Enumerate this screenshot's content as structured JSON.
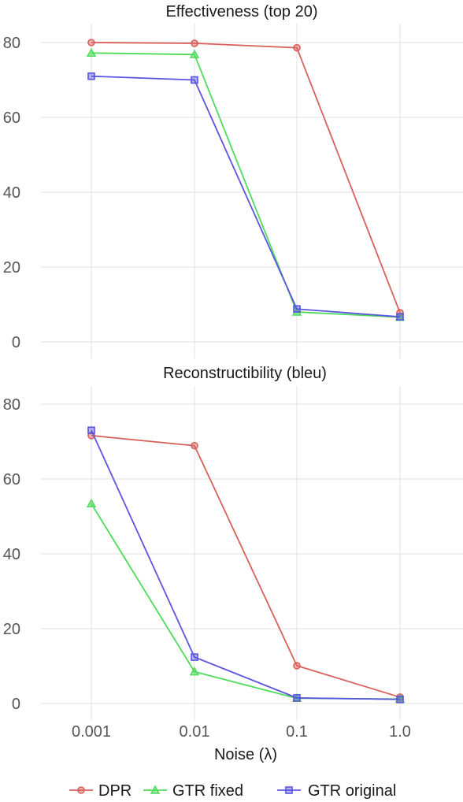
{
  "chart_data": [
    {
      "type": "line",
      "title": "Effectiveness (top 20)",
      "categories": [
        "0.001",
        "0.01",
        "0.1",
        "1.0"
      ],
      "ylim": [
        0,
        85
      ],
      "yticks": [
        0,
        20,
        40,
        60,
        80
      ],
      "grid": true,
      "series": [
        {
          "name": "DPR",
          "values": [
            80.0,
            79.8,
            78.6,
            7.8
          ]
        },
        {
          "name": "GTR fixed",
          "values": [
            77.2,
            76.8,
            8.0,
            6.6
          ]
        },
        {
          "name": "GTR original",
          "values": [
            71.0,
            70.0,
            8.8,
            6.7
          ]
        }
      ]
    },
    {
      "type": "line",
      "title": "Reconstructibility (bleu)",
      "categories": [
        "0.001",
        "0.01",
        "0.1",
        "1.0"
      ],
      "ylim": [
        0,
        85
      ],
      "yticks": [
        0,
        20,
        40,
        60,
        80
      ],
      "grid": true,
      "series": [
        {
          "name": "DPR",
          "values": [
            71.6,
            68.9,
            10.1,
            1.7
          ]
        },
        {
          "name": "GTR fixed",
          "values": [
            53.4,
            8.5,
            1.4,
            1.2
          ]
        },
        {
          "name": "GTR original",
          "values": [
            73.0,
            12.4,
            1.5,
            1.1
          ]
        }
      ]
    }
  ],
  "xlabel": "Noise (λ)",
  "legend": {
    "placement": "bottom",
    "items": [
      {
        "name": "DPR",
        "color": "#d9605a",
        "marker": "circle"
      },
      {
        "name": "GTR fixed",
        "color": "#4fdb5c",
        "marker": "triangle"
      },
      {
        "name": "GTR original",
        "color": "#5b55df",
        "marker": "square"
      }
    ]
  },
  "colors": {
    "grid": "#e6e6e6",
    "tick_text": "#555555",
    "title_text": "#1a1a1a"
  }
}
